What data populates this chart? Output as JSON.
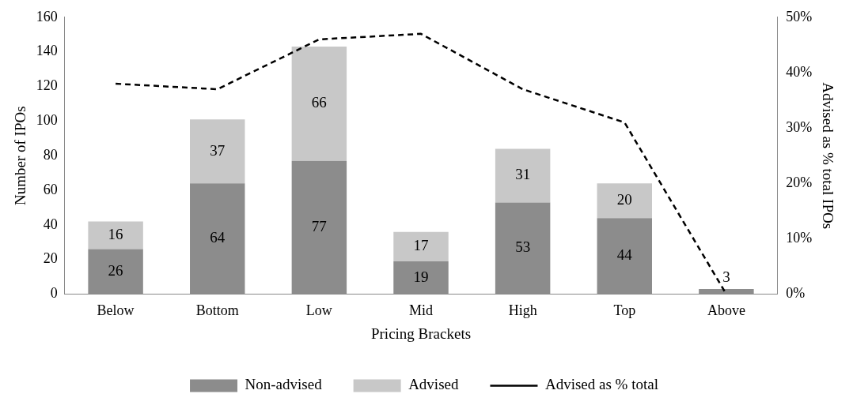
{
  "chart_data": {
    "type": "bar",
    "stacked": true,
    "xlabel": "Pricing Brackets",
    "ylabel": "Number of IPOs",
    "y2label": "Advised as % total IPOs",
    "categories": [
      "Below",
      "Bottom",
      "Low",
      "Mid",
      "High",
      "Top",
      "Above"
    ],
    "series": [
      {
        "name": "Non-advised",
        "color": "#8c8c8c",
        "values": [
          26,
          64,
          77,
          19,
          53,
          44,
          3
        ],
        "value_labels": [
          "26",
          "64",
          "77",
          "19",
          "53",
          "44",
          "3"
        ]
      },
      {
        "name": "Advised",
        "color": "#c8c8c8",
        "values": [
          16,
          37,
          66,
          17,
          31,
          20,
          0
        ],
        "value_labels": [
          "16",
          "37",
          "66",
          "17",
          "31",
          "20",
          null
        ]
      },
      {
        "name": "Advised as % total",
        "type": "line",
        "axis": "y2",
        "color": "#000000",
        "line_style": "dashed",
        "marker": "none",
        "values": [
          38,
          37,
          46,
          47,
          37,
          31,
          0
        ]
      }
    ],
    "ylim": [
      0,
      160
    ],
    "yticks": [
      0,
      20,
      40,
      60,
      80,
      100,
      120,
      140,
      160
    ],
    "y2lim": [
      0,
      50
    ],
    "y2ticks": [
      {
        "value": 0,
        "label": "0%"
      },
      {
        "value": 10,
        "label": "10%"
      },
      {
        "value": 20,
        "label": "20%"
      },
      {
        "value": 30,
        "label": "30%"
      },
      {
        "value": 40,
        "label": "40%"
      },
      {
        "value": 50,
        "label": "50%"
      }
    ],
    "grid": false,
    "legend": "bottom"
  }
}
